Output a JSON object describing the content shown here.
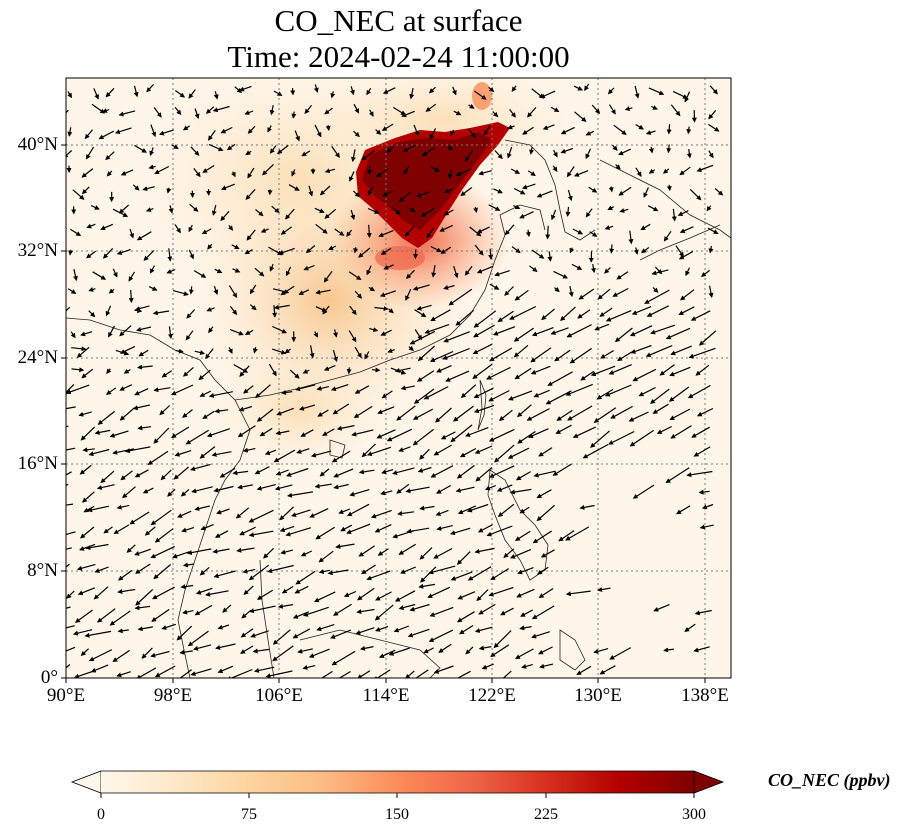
{
  "figure": {
    "title_line1": "CO_NEC at surface",
    "title_line2": "Time: 2024-02-24 11:00:00"
  },
  "map": {
    "variable": "CO_NEC",
    "level": "surface",
    "extent": {
      "lon_min": 90,
      "lon_max": 140,
      "lat_min": 0,
      "lat_max": 45
    },
    "gridlines": true,
    "x_ticks": [
      "90°E",
      "98°E",
      "106°E",
      "114°E",
      "122°E",
      "130°E",
      "138°E"
    ],
    "y_ticks": [
      "0°",
      "8°N",
      "16°N",
      "24°N",
      "32°N",
      "40°N"
    ],
    "x_tick_values": [
      90,
      98,
      106,
      114,
      122,
      130,
      138
    ],
    "y_tick_values": [
      0,
      8,
      16,
      24,
      32,
      40
    ],
    "wind_vectors": "black quiver arrows",
    "high_concentration_region": "North China Plain (approx. 113-121°E, 32-40°N)"
  },
  "colorbar": {
    "label": "CO_NEC (ppbv)",
    "ticks": [
      "0",
      "75",
      "150",
      "225",
      "300"
    ],
    "tick_values": [
      0,
      75,
      150,
      225,
      300
    ],
    "min": 0,
    "max": 300,
    "extend": "both",
    "colormap": "OrRd",
    "colors": [
      "#fff7ec",
      "#fee8c8",
      "#fdd49e",
      "#fdbb84",
      "#fc8d59",
      "#ef6548",
      "#d7301f",
      "#b30000",
      "#7f0000"
    ]
  }
}
